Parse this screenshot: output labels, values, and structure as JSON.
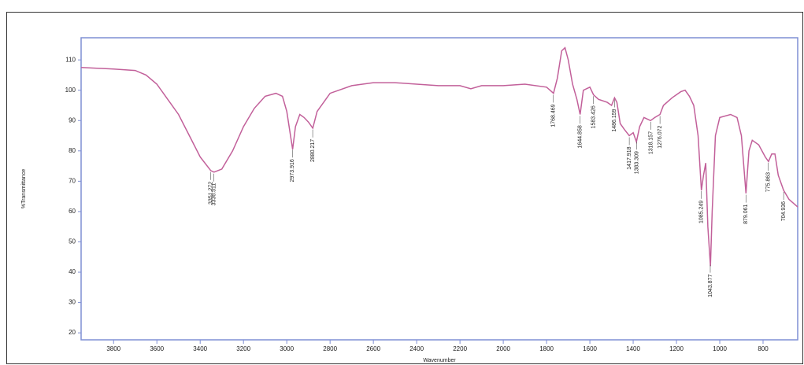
{
  "chart_data": {
    "type": "line",
    "y_label": "%Transmittance",
    "x_label": "Wavenumber",
    "x": [
      3950,
      3800,
      3700,
      3650,
      3600,
      3500,
      3450,
      3400,
      3351,
      3336,
      3300,
      3250,
      3200,
      3150,
      3100,
      3050,
      3020,
      3000,
      2973,
      2960,
      2940,
      2920,
      2900,
      2880,
      2860,
      2800,
      2700,
      2600,
      2500,
      2400,
      2300,
      2200,
      2150,
      2100,
      2000,
      1900,
      1800,
      1768,
      1750,
      1730,
      1715,
      1700,
      1680,
      1660,
      1645,
      1630,
      1600,
      1583,
      1560,
      1520,
      1500,
      1486,
      1475,
      1460,
      1440,
      1418,
      1400,
      1385,
      1370,
      1350,
      1320,
      1300,
      1276,
      1260,
      1220,
      1180,
      1160,
      1140,
      1120,
      1100,
      1085,
      1075,
      1065,
      1055,
      1043,
      1035,
      1020,
      1000,
      950,
      920,
      900,
      879,
      865,
      850,
      820,
      790,
      775,
      760,
      745,
      730,
      705,
      680,
      640
    ],
    "series": [
      {
        "name": "spectrum",
        "color": "#c2609a",
        "values": [
          107.5,
          107,
          106.5,
          105,
          102,
          92,
          85,
          78,
          73.5,
          73,
          74,
          80,
          88,
          94,
          98,
          99,
          98,
          93,
          80.5,
          88,
          92,
          91,
          89.5,
          87.5,
          93,
          99,
          101.5,
          102.5,
          102.5,
          102,
          101.5,
          101.5,
          100.5,
          101.5,
          101.5,
          102,
          101,
          99,
          104,
          113,
          114,
          110,
          102,
          97,
          92,
          100,
          101,
          98.5,
          97,
          96,
          95,
          97.5,
          96,
          89,
          87,
          85,
          86,
          83,
          88,
          91,
          90,
          91,
          92,
          95,
          97.5,
          99.5,
          100,
          98,
          95,
          85,
          67,
          72,
          76,
          55,
          42,
          60,
          85,
          91,
          92,
          91,
          85,
          66,
          80,
          83.5,
          82,
          78,
          76.5,
          79,
          79,
          72,
          67,
          64,
          61.5
        ]
      }
    ],
    "annotations": [
      {
        "x": 3351.272,
        "label": "3351.272"
      },
      {
        "x": 3336.511,
        "label": "3336.511"
      },
      {
        "x": 2973.916,
        "label": "2973.916"
      },
      {
        "x": 2880.217,
        "label": "2880.217"
      },
      {
        "x": 1768.469,
        "label": "1768.469"
      },
      {
        "x": 1644.858,
        "label": "1644.858"
      },
      {
        "x": 1583.426,
        "label": "1583.426"
      },
      {
        "x": 1486.159,
        "label": "1486.159"
      },
      {
        "x": 1417.918,
        "label": "1417.918"
      },
      {
        "x": 1383.309,
        "label": "1383.309"
      },
      {
        "x": 1318.157,
        "label": "1318.157"
      },
      {
        "x": 1276.072,
        "label": "1276.072"
      },
      {
        "x": 1085.249,
        "label": "1085.249"
      },
      {
        "x": 1043.877,
        "label": "1043.877"
      },
      {
        "x": 879.061,
        "label": "879.061"
      },
      {
        "x": 775.863,
        "label": "775.863"
      },
      {
        "x": 704.936,
        "label": "704.936"
      }
    ],
    "xlim": [
      3950,
      640
    ],
    "ylim": [
      17.7,
      117.3
    ],
    "xticks": [
      3800,
      3600,
      3400,
      3200,
      3000,
      2800,
      2600,
      2400,
      2200,
      2000,
      1800,
      1600,
      1400,
      1200,
      1000,
      800
    ],
    "yticks": [
      20,
      30,
      40,
      50,
      60,
      70,
      80,
      90,
      100,
      110
    ],
    "frame_color": "#7f8fd4"
  }
}
